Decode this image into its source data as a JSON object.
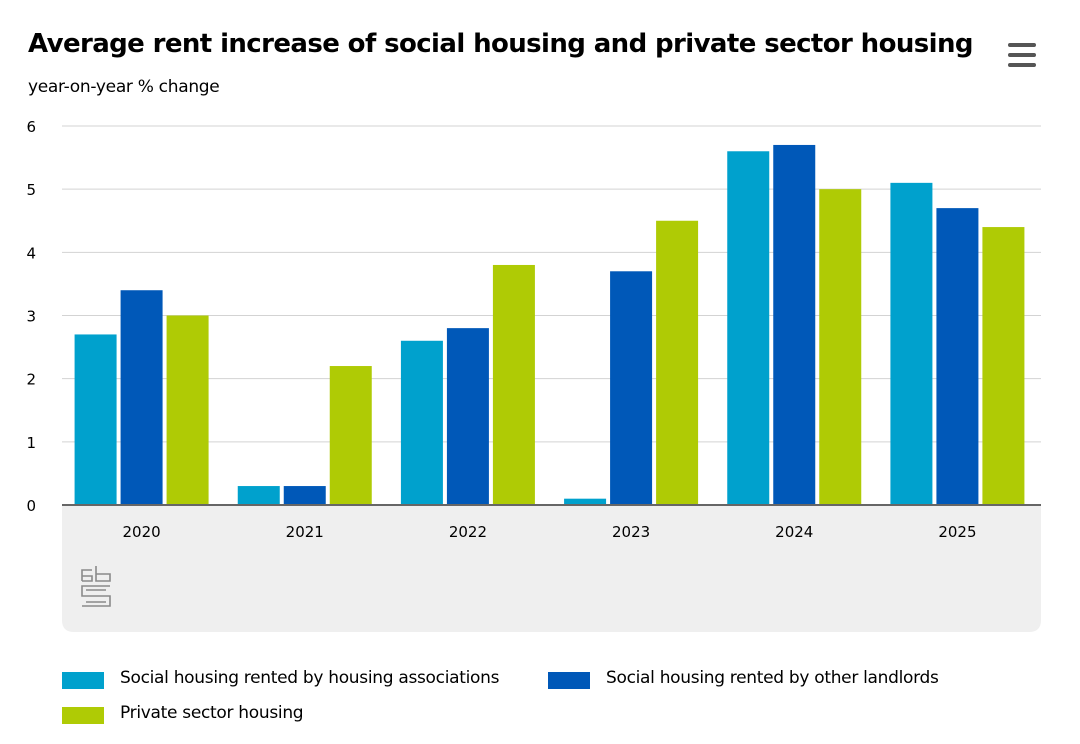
{
  "chart_data": {
    "type": "bar",
    "title": "Average rent increase of social housing and private sector housing",
    "ylabel": "year-on-year % change",
    "xlabel": "",
    "categories": [
      "2020",
      "2021",
      "2022",
      "2023",
      "2024",
      "2025"
    ],
    "series": [
      {
        "name": "Social housing rented by housing associations",
        "color": "#00A1CD",
        "values": [
          2.7,
          0.3,
          2.6,
          0.1,
          5.6,
          5.1
        ]
      },
      {
        "name": "Social housing rented by other landlords",
        "color": "#0058B8",
        "values": [
          3.4,
          0.3,
          2.8,
          3.7,
          5.7,
          4.7
        ]
      },
      {
        "name": "Private sector housing",
        "color": "#AFCB05",
        "values": [
          3.0,
          2.2,
          3.8,
          4.5,
          5.0,
          4.4
        ]
      }
    ],
    "ylim": [
      0,
      6
    ],
    "yticks": [
      "0",
      "1",
      "2",
      "3",
      "4",
      "5",
      "6"
    ],
    "grid": true,
    "legend_position": "bottom"
  },
  "ui": {
    "menu_icon": "hamburger-menu-icon",
    "logo_icon": "cbs-logo-icon",
    "colors": {
      "gridline": "#D3D3D3",
      "axis": "#666666",
      "footer_background": "#EFEFEF"
    }
  }
}
